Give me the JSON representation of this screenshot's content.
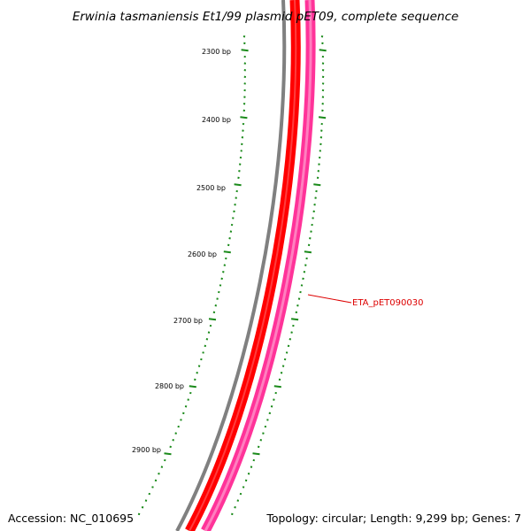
{
  "title": "Erwinia tasmaniensis Et1/99 plasmid pET09, complete sequence",
  "footer": {
    "accession": "Accession: NC_010695",
    "summary": "Topology: circular; Length: 9,299 bp; Genes: 7"
  },
  "ruler": {
    "labels": [
      "2300 bp",
      "2400 bp",
      "2500 bp",
      "2600 bp",
      "2700 bp",
      "2800 bp",
      "2900 bp"
    ],
    "color": "#1a8a1a"
  },
  "feature": {
    "label": "ETA_pET090030",
    "label_color": "#dd0000"
  },
  "colors": {
    "backbone": "#808080",
    "red_track": "#ff0000",
    "pink_track": "#ff3399",
    "leader_line": "#dd0000"
  }
}
